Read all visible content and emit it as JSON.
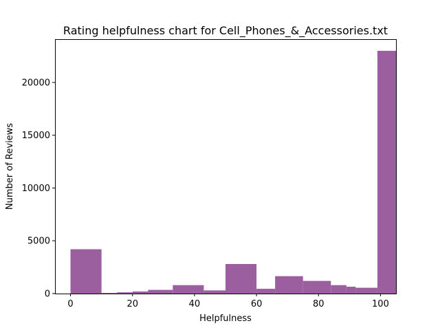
{
  "chart_data": {
    "type": "bar",
    "title": "Rating helpfulness chart for Cell_Phones_&_Accessories.txt",
    "xlabel": "Helpfulness",
    "ylabel": "Number of Reviews",
    "xlim": [
      -5,
      105
    ],
    "ylim": [
      0,
      24100
    ],
    "xticks": [
      0,
      20,
      40,
      60,
      80,
      100
    ],
    "yticks": [
      0,
      5000,
      10000,
      15000,
      20000
    ],
    "grid": false,
    "legend": "none",
    "bar_color": "#9b5fa0",
    "bins": [
      {
        "x0": 0,
        "x1": 10,
        "value": 4200
      },
      {
        "x0": 10,
        "x1": 15,
        "value": 60
      },
      {
        "x0": 15,
        "x1": 20,
        "value": 120
      },
      {
        "x0": 20,
        "x1": 25,
        "value": 200
      },
      {
        "x0": 25,
        "x1": 33,
        "value": 350
      },
      {
        "x0": 33,
        "x1": 43,
        "value": 800
      },
      {
        "x0": 43,
        "x1": 50,
        "value": 300
      },
      {
        "x0": 50,
        "x1": 60,
        "value": 2800
      },
      {
        "x0": 60,
        "x1": 66,
        "value": 450
      },
      {
        "x0": 66,
        "x1": 75,
        "value": 1650
      },
      {
        "x0": 75,
        "x1": 84,
        "value": 1200
      },
      {
        "x0": 84,
        "x1": 89,
        "value": 800
      },
      {
        "x0": 89,
        "x1": 92,
        "value": 650
      },
      {
        "x0": 92,
        "x1": 99,
        "value": 550
      },
      {
        "x0": 99,
        "x1": 105,
        "value": 23000
      }
    ]
  }
}
